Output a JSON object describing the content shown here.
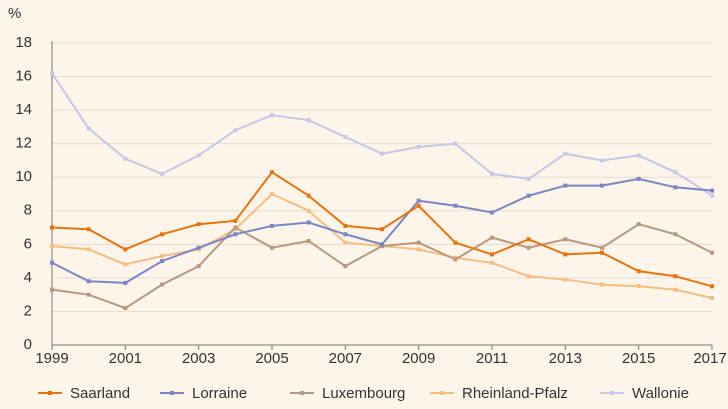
{
  "chart_data": {
    "type": "line",
    "y_label": "%",
    "x": [
      1999,
      2000,
      2001,
      2002,
      2003,
      2004,
      2005,
      2006,
      2007,
      2008,
      2009,
      2010,
      2011,
      2012,
      2013,
      2014,
      2015,
      2016,
      2017
    ],
    "xlim": [
      1999,
      2017
    ],
    "xticks": [
      1999,
      2001,
      2003,
      2005,
      2007,
      2009,
      2011,
      2013,
      2015,
      2017
    ],
    "ylim": [
      0,
      18
    ],
    "yticks": [
      0,
      2,
      4,
      6,
      8,
      10,
      12,
      14,
      16,
      18
    ],
    "grid": true,
    "legend": "bottom",
    "series": [
      {
        "name": "Saarland",
        "color": "#e8730c",
        "values": [
          7.0,
          6.9,
          5.7,
          6.6,
          7.2,
          7.4,
          10.3,
          8.9,
          7.1,
          6.9,
          8.3,
          6.1,
          5.4,
          6.3,
          5.4,
          5.5,
          4.4,
          4.1,
          3.5
        ]
      },
      {
        "name": "Lorraine",
        "color": "#7b86c4",
        "values": [
          4.9,
          3.8,
          3.7,
          5.0,
          5.8,
          6.6,
          7.1,
          7.3,
          6.6,
          6.0,
          8.6,
          8.3,
          7.9,
          8.9,
          9.5,
          9.5,
          9.9,
          9.4,
          9.2
        ]
      },
      {
        "name": "Luxembourg",
        "color": "#b99880",
        "values": [
          3.3,
          3.0,
          2.2,
          3.6,
          4.7,
          7.0,
          5.8,
          6.2,
          4.7,
          5.9,
          6.1,
          5.1,
          6.4,
          5.8,
          6.3,
          5.8,
          7.2,
          6.6,
          5.5
        ]
      },
      {
        "name": "Rheinland-Pfalz",
        "color": "#f5be80",
        "values": [
          5.9,
          5.7,
          4.8,
          5.3,
          5.7,
          6.9,
          9.0,
          8.0,
          6.1,
          5.9,
          5.7,
          5.2,
          4.9,
          4.1,
          3.9,
          3.6,
          3.5,
          3.3,
          2.8
        ]
      },
      {
        "name": "Wallonie",
        "color": "#c5c8e6",
        "values": [
          16.2,
          12.9,
          11.1,
          10.2,
          11.3,
          12.8,
          13.7,
          13.4,
          12.4,
          11.4,
          11.8,
          12.0,
          10.2,
          9.9,
          11.4,
          11.0,
          11.3,
          10.3,
          8.9
        ]
      }
    ]
  }
}
